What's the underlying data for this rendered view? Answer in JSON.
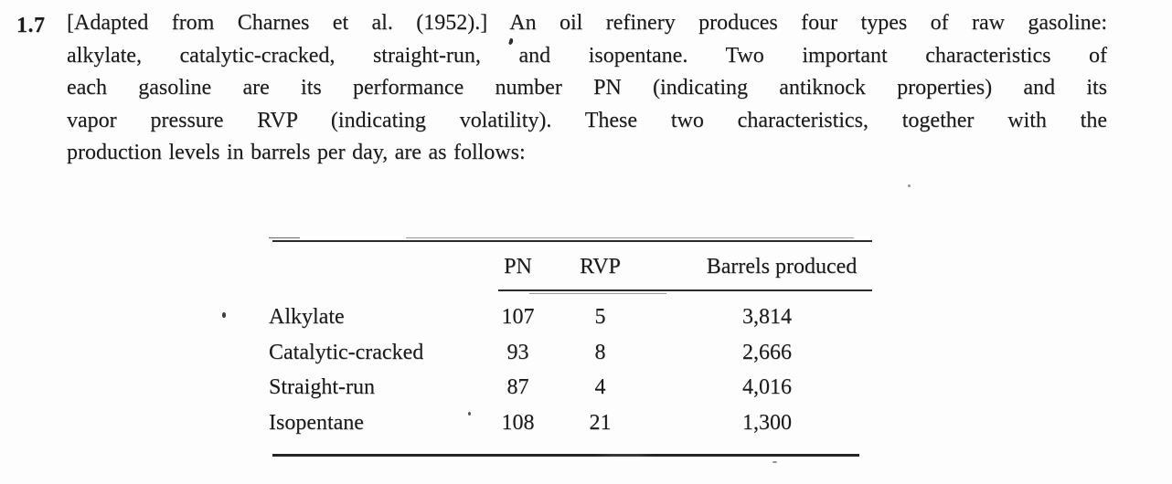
{
  "page": {
    "background": "#fdfdfd",
    "ink": "#1c1c1c"
  },
  "problem": {
    "number": "1.7",
    "lines": [
      "[Adapted from Charnes et al. (1952).] An oil refinery produces four types of raw gasoline:",
      "alkylate, catalytic-cracked, straight-run, and isopentane. Two important characteristics of",
      "each gasoline are its performance number PN (indicating antiknock properties) and its",
      "vapor pressure RVP (indicating volatility). These two characteristics, together with the",
      "production levels in barrels per day, are as follows:"
    ]
  },
  "table": {
    "headers": {
      "pn": "PN",
      "rvp": "RVP",
      "barrels": "Barrels produced"
    },
    "rows": [
      {
        "label": "Alkylate",
        "pn": "107",
        "rvp": "5",
        "barrels": "3,814"
      },
      {
        "label": "Catalytic-cracked",
        "pn": "93",
        "rvp": "8",
        "barrels": "2,666"
      },
      {
        "label": "Straight-run",
        "pn": "87",
        "rvp": "4",
        "barrels": "4,016"
      },
      {
        "label": "Isopentane",
        "pn": "108",
        "rvp": "21",
        "barrels": "1,300"
      }
    ]
  }
}
